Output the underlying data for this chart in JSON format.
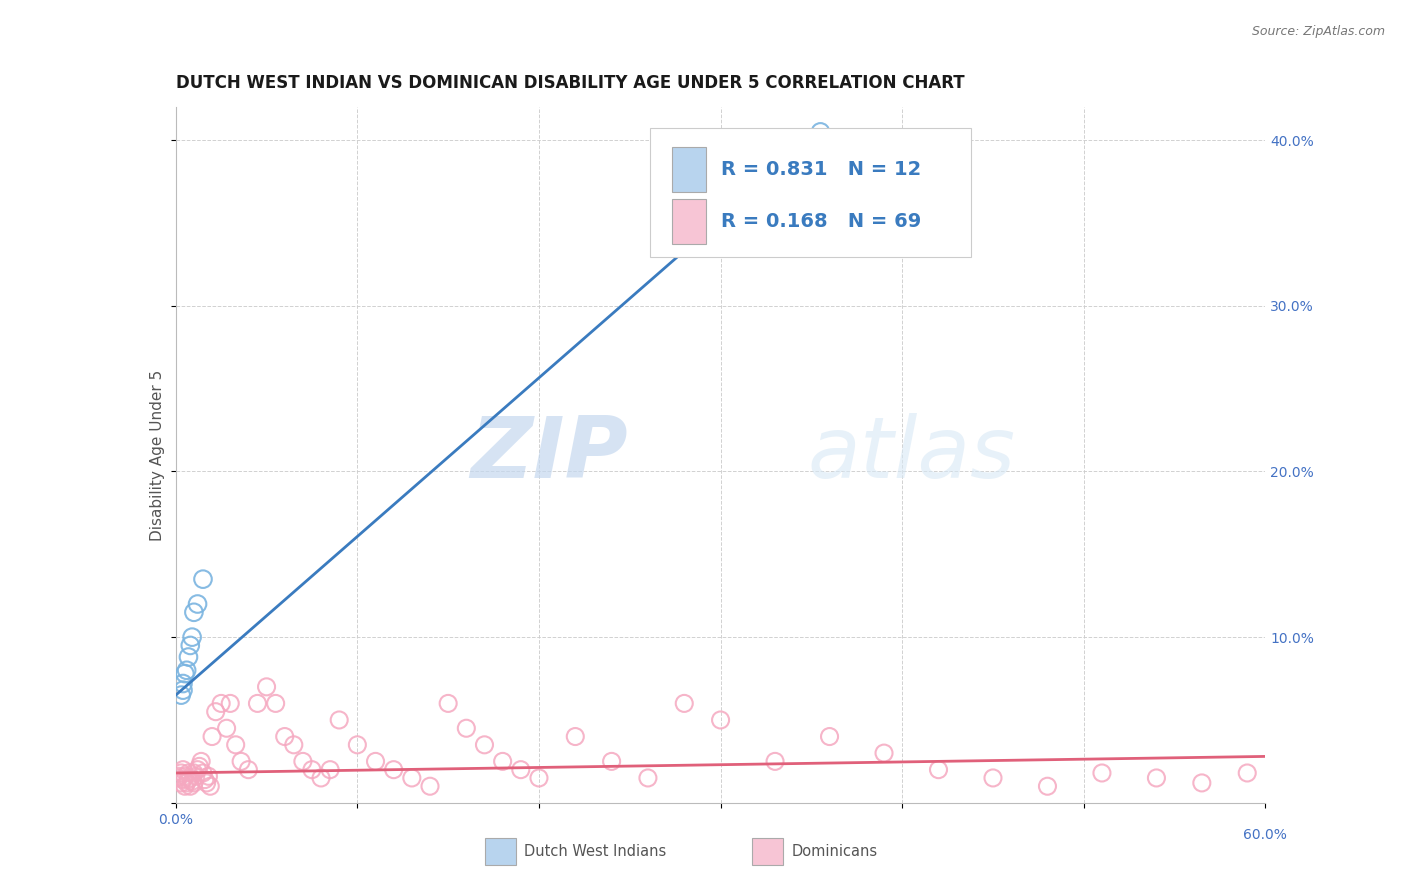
{
  "title": "DUTCH WEST INDIAN VS DOMINICAN DISABILITY AGE UNDER 5 CORRELATION CHART",
  "source": "Source: ZipAtlas.com",
  "ylabel": "Disability Age Under 5",
  "xlim": [
    0.0,
    0.6
  ],
  "ylim": [
    0.0,
    0.42
  ],
  "xticks": [
    0.0,
    0.1,
    0.2,
    0.3,
    0.4,
    0.5,
    0.6
  ],
  "xticklabels": [
    "0.0%",
    "",
    "",
    "",
    "",
    "",
    "60.0%"
  ],
  "yticks": [
    0.0,
    0.1,
    0.2,
    0.3,
    0.4
  ],
  "yticklabels_right": [
    "",
    "10.0%",
    "20.0%",
    "30.0%",
    "40.0%"
  ],
  "dutch_color": "#7ab4e0",
  "dominican_color": "#f5a8c0",
  "dutch_line_color": "#3a7bbf",
  "dominican_line_color": "#e0607a",
  "R_dutch": 0.831,
  "N_dutch": 12,
  "R_dominican": 0.168,
  "N_dominican": 69,
  "background_color": "#ffffff",
  "grid_color": "#cccccc",
  "legend_box_color_dutch": "#b8d4ee",
  "legend_box_color_dominican": "#f7c5d5",
  "dutch_line_x0": 0.0,
  "dutch_line_y0": 0.065,
  "dutch_line_x1": 0.355,
  "dutch_line_y1": 0.405,
  "dom_line_x0": 0.0,
  "dom_line_y0": 0.018,
  "dom_line_x1": 0.6,
  "dom_line_y1": 0.028,
  "dutch_points_x": [
    0.003,
    0.004,
    0.004,
    0.005,
    0.006,
    0.007,
    0.008,
    0.009,
    0.01,
    0.012,
    0.015,
    0.355
  ],
  "dutch_points_y": [
    0.065,
    0.068,
    0.072,
    0.078,
    0.08,
    0.088,
    0.095,
    0.1,
    0.115,
    0.12,
    0.135,
    0.405
  ],
  "dom_points_x": [
    0.001,
    0.002,
    0.003,
    0.003,
    0.004,
    0.004,
    0.005,
    0.005,
    0.006,
    0.007,
    0.007,
    0.008,
    0.008,
    0.009,
    0.01,
    0.01,
    0.011,
    0.012,
    0.013,
    0.014,
    0.015,
    0.016,
    0.017,
    0.018,
    0.019,
    0.02,
    0.022,
    0.025,
    0.028,
    0.03,
    0.033,
    0.036,
    0.04,
    0.045,
    0.05,
    0.055,
    0.06,
    0.065,
    0.07,
    0.075,
    0.08,
    0.085,
    0.09,
    0.1,
    0.11,
    0.12,
    0.13,
    0.14,
    0.15,
    0.16,
    0.17,
    0.18,
    0.19,
    0.2,
    0.22,
    0.24,
    0.26,
    0.28,
    0.3,
    0.33,
    0.36,
    0.39,
    0.42,
    0.45,
    0.48,
    0.51,
    0.54,
    0.565,
    0.59
  ],
  "dom_points_y": [
    0.015,
    0.016,
    0.012,
    0.018,
    0.014,
    0.02,
    0.01,
    0.016,
    0.012,
    0.014,
    0.018,
    0.01,
    0.015,
    0.013,
    0.012,
    0.018,
    0.016,
    0.02,
    0.022,
    0.025,
    0.018,
    0.014,
    0.012,
    0.016,
    0.01,
    0.04,
    0.055,
    0.06,
    0.045,
    0.06,
    0.035,
    0.025,
    0.02,
    0.06,
    0.07,
    0.06,
    0.04,
    0.035,
    0.025,
    0.02,
    0.015,
    0.02,
    0.05,
    0.035,
    0.025,
    0.02,
    0.015,
    0.01,
    0.06,
    0.045,
    0.035,
    0.025,
    0.02,
    0.015,
    0.04,
    0.025,
    0.015,
    0.06,
    0.05,
    0.025,
    0.04,
    0.03,
    0.02,
    0.015,
    0.01,
    0.018,
    0.015,
    0.012,
    0.018
  ],
  "watermark_zip": "ZIP",
  "watermark_atlas": "atlas",
  "title_fontsize": 12,
  "axis_label_fontsize": 11,
  "tick_fontsize": 10,
  "legend_fontsize": 14
}
